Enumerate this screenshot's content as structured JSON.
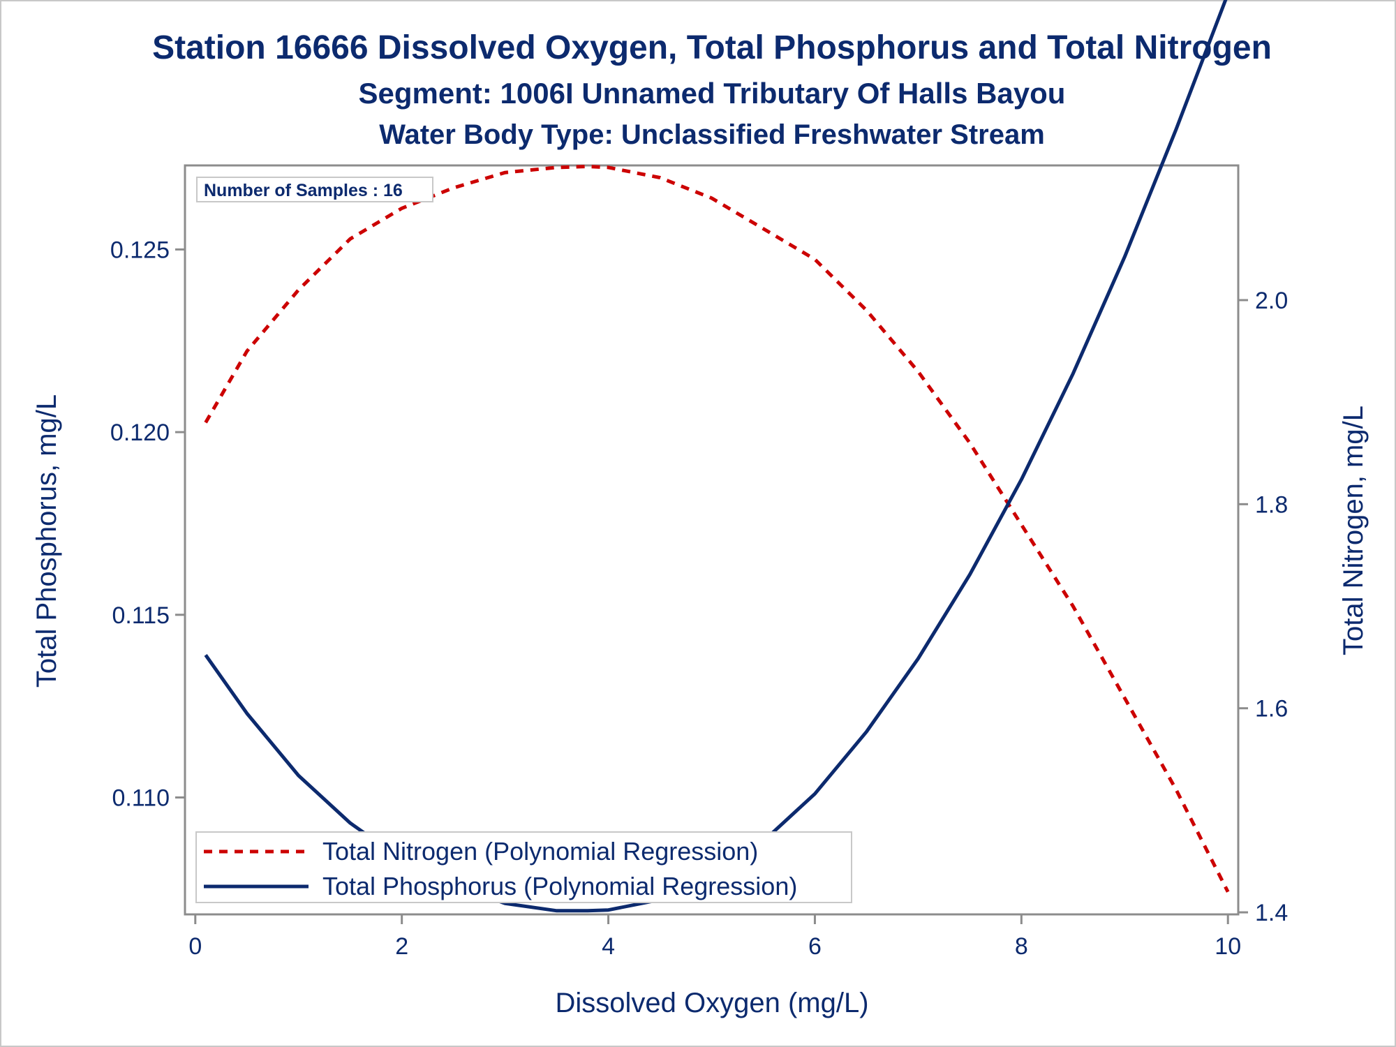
{
  "title": "Station 16666  Dissolved Oxygen, Total Phosphorus and Total Nitrogen",
  "subtitle": "Segment: 1006I  Unnamed Tributary Of Halls Bayou",
  "subtitle2": "Water Body Type: Unclassified Freshwater Stream",
  "inset_text": "Number of Samples : 16",
  "colors": {
    "text": "#0c2a6e",
    "nitrogen": "#cc0000",
    "phosphorus": "#0c2a6e",
    "frame": "#8c8c8c"
  },
  "chart_data": {
    "type": "line",
    "title": "Station 16666  Dissolved Oxygen, Total Phosphorus and Total Nitrogen",
    "xlabel": "Dissolved Oxygen (mg/L)",
    "ylabel": "Total Phosphorus, mg/L",
    "y2label": "Total Nitrogen, mg/L",
    "xlim": [
      -0.1,
      10.1
    ],
    "ylim": [
      0.1068,
      0.1273
    ],
    "y2lim": [
      1.398,
      2.132
    ],
    "xticks": [
      "0",
      "2",
      "4",
      "6",
      "8",
      "10"
    ],
    "yticks": [
      "0.110",
      "0.115",
      "0.120",
      "0.125"
    ],
    "y2ticks": [
      "1.4",
      "1.6",
      "1.8",
      "2.0"
    ],
    "grid": false,
    "legend_position": "bottom-left",
    "series": [
      {
        "name": "Total Nitrogen (Polynomial Regression)",
        "axis": "right",
        "style": "dashed",
        "color": "#cc0000",
        "x": [
          0.1,
          0.5,
          1.0,
          1.5,
          2.0,
          2.5,
          3.0,
          3.5,
          3.8,
          4.0,
          4.5,
          5.0,
          5.5,
          6.0,
          6.5,
          7.0,
          7.5,
          8.0,
          8.5,
          9.0,
          9.5,
          10.0
        ],
        "values": [
          1.88,
          1.95,
          2.01,
          2.06,
          2.09,
          2.11,
          2.125,
          2.13,
          2.131,
          2.13,
          2.12,
          2.1,
          2.07,
          2.04,
          1.99,
          1.93,
          1.86,
          1.78,
          1.7,
          1.61,
          1.52,
          1.42
        ]
      },
      {
        "name": "Total Phosphorus (Polynomial Regression)",
        "axis": "left",
        "style": "solid",
        "color": "#0c2a6e",
        "x": [
          0.1,
          0.5,
          1.0,
          1.5,
          2.0,
          2.5,
          3.0,
          3.5,
          3.8,
          4.0,
          4.5,
          5.0,
          5.5,
          6.0,
          6.5,
          7.0,
          7.5,
          8.0,
          8.5,
          9.0,
          9.5,
          10.0
        ],
        "values": [
          0.1139,
          0.1123,
          0.1106,
          0.1093,
          0.1083,
          0.1076,
          0.1071,
          0.1069,
          0.1069,
          0.10692,
          0.1072,
          0.1079,
          0.1088,
          0.1101,
          0.1118,
          0.1138,
          0.1161,
          0.1187,
          0.1216,
          0.1248,
          0.1283,
          0.132
        ]
      }
    ]
  }
}
